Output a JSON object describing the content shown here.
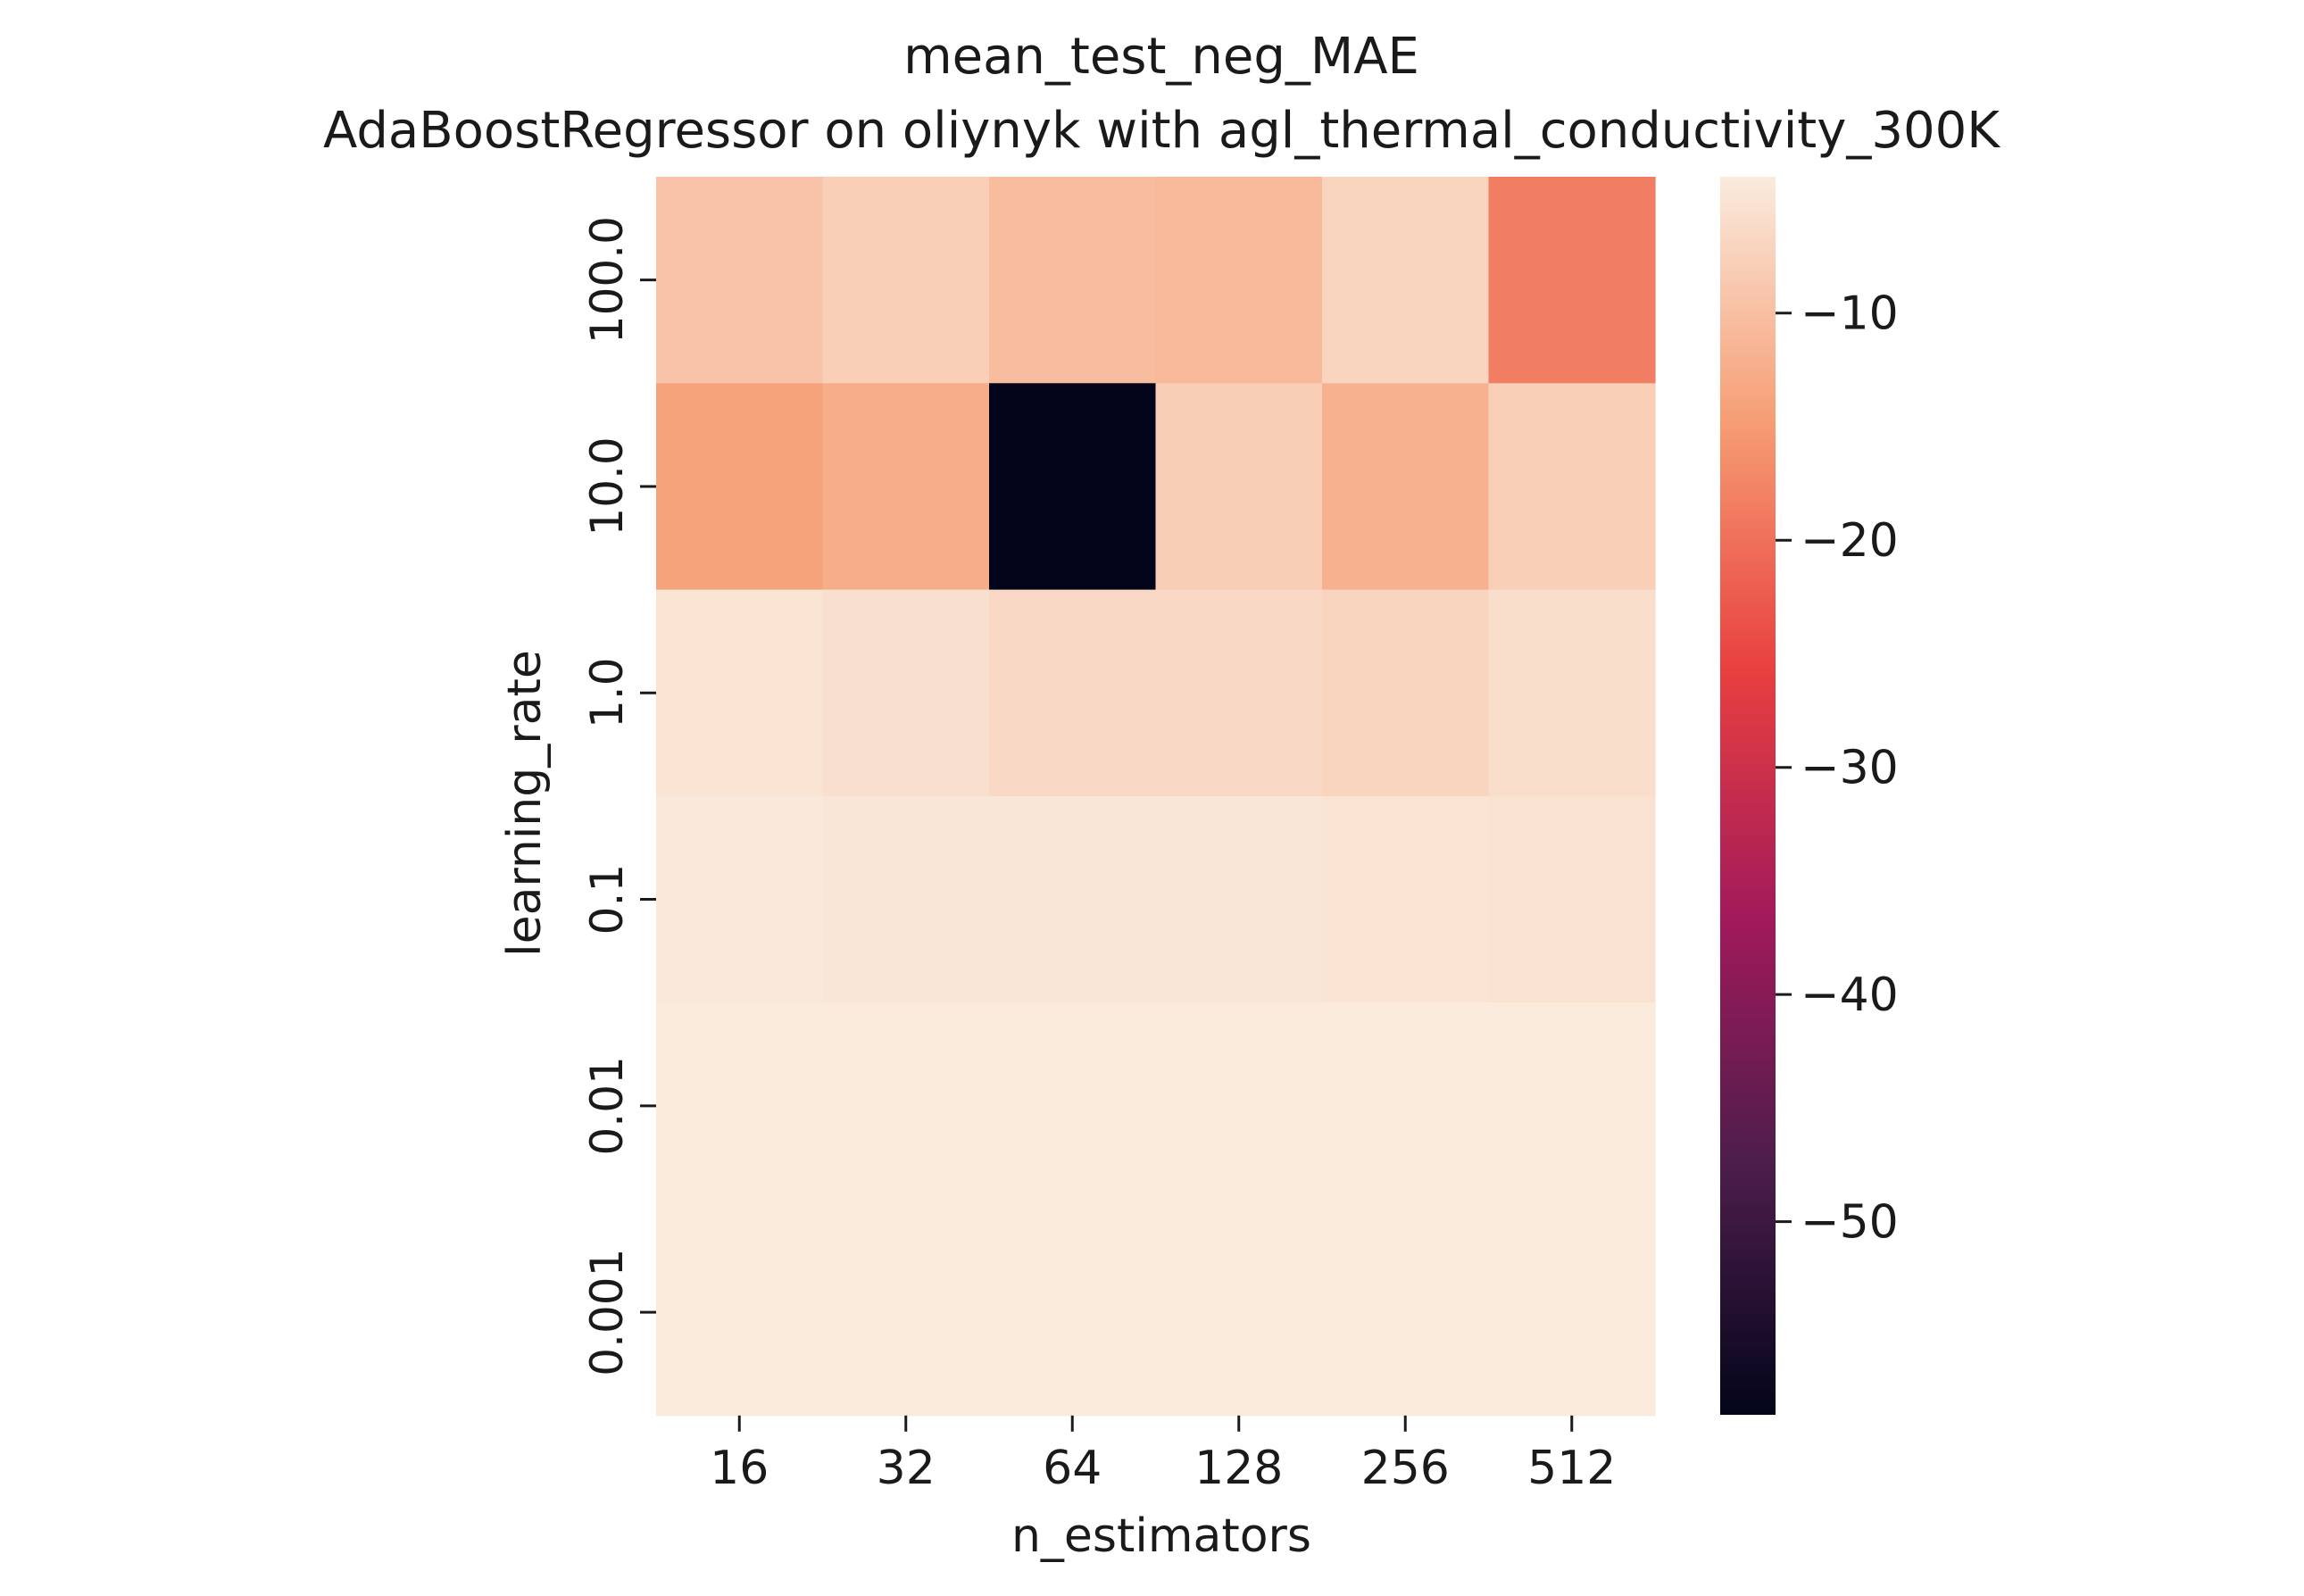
{
  "chart_data": {
    "type": "heatmap",
    "title": "mean_test_neg_MAE",
    "subtitle": "AdaBoostRegressor on oliynyk with agl_thermal_conductivity_300K",
    "xlabel": "n_estimators",
    "ylabel": "learning_rate",
    "x_categories": [
      "16",
      "32",
      "64",
      "128",
      "256",
      "512"
    ],
    "y_categories": [
      "100.0",
      "10.0",
      "1.0",
      "0.1",
      "0.01",
      "0.001"
    ],
    "values": [
      [
        -9.5,
        -7.8,
        -10.5,
        -10.8,
        -7.0,
        -18.5
      ],
      [
        -14.0,
        -12.5,
        -58.5,
        -8.0,
        -12.0,
        -7.8
      ],
      [
        -4.8,
        -5.5,
        -6.5,
        -6.5,
        -7.0,
        -5.8
      ],
      [
        -4.3,
        -4.7,
        -4.7,
        -4.7,
        -5.0,
        -5.2
      ],
      [
        -4.0,
        -4.0,
        -4.0,
        -4.0,
        -4.0,
        -4.0
      ],
      [
        -4.0,
        -4.0,
        -4.0,
        -4.0,
        -4.0,
        -4.0
      ]
    ],
    "colorbar": {
      "range": [
        -58.5,
        -4.0
      ],
      "ticks": [
        -10,
        -20,
        -30,
        -40,
        -50
      ],
      "tick_labels": [
        "−10",
        "−20",
        "−30",
        "−40",
        "−50"
      ],
      "colormap": "rocket",
      "colormap_stops": [
        "#03051a",
        "#4c1d4b",
        "#a11a5b",
        "#e83f3f",
        "#f69c73",
        "#faebdd"
      ]
    }
  }
}
